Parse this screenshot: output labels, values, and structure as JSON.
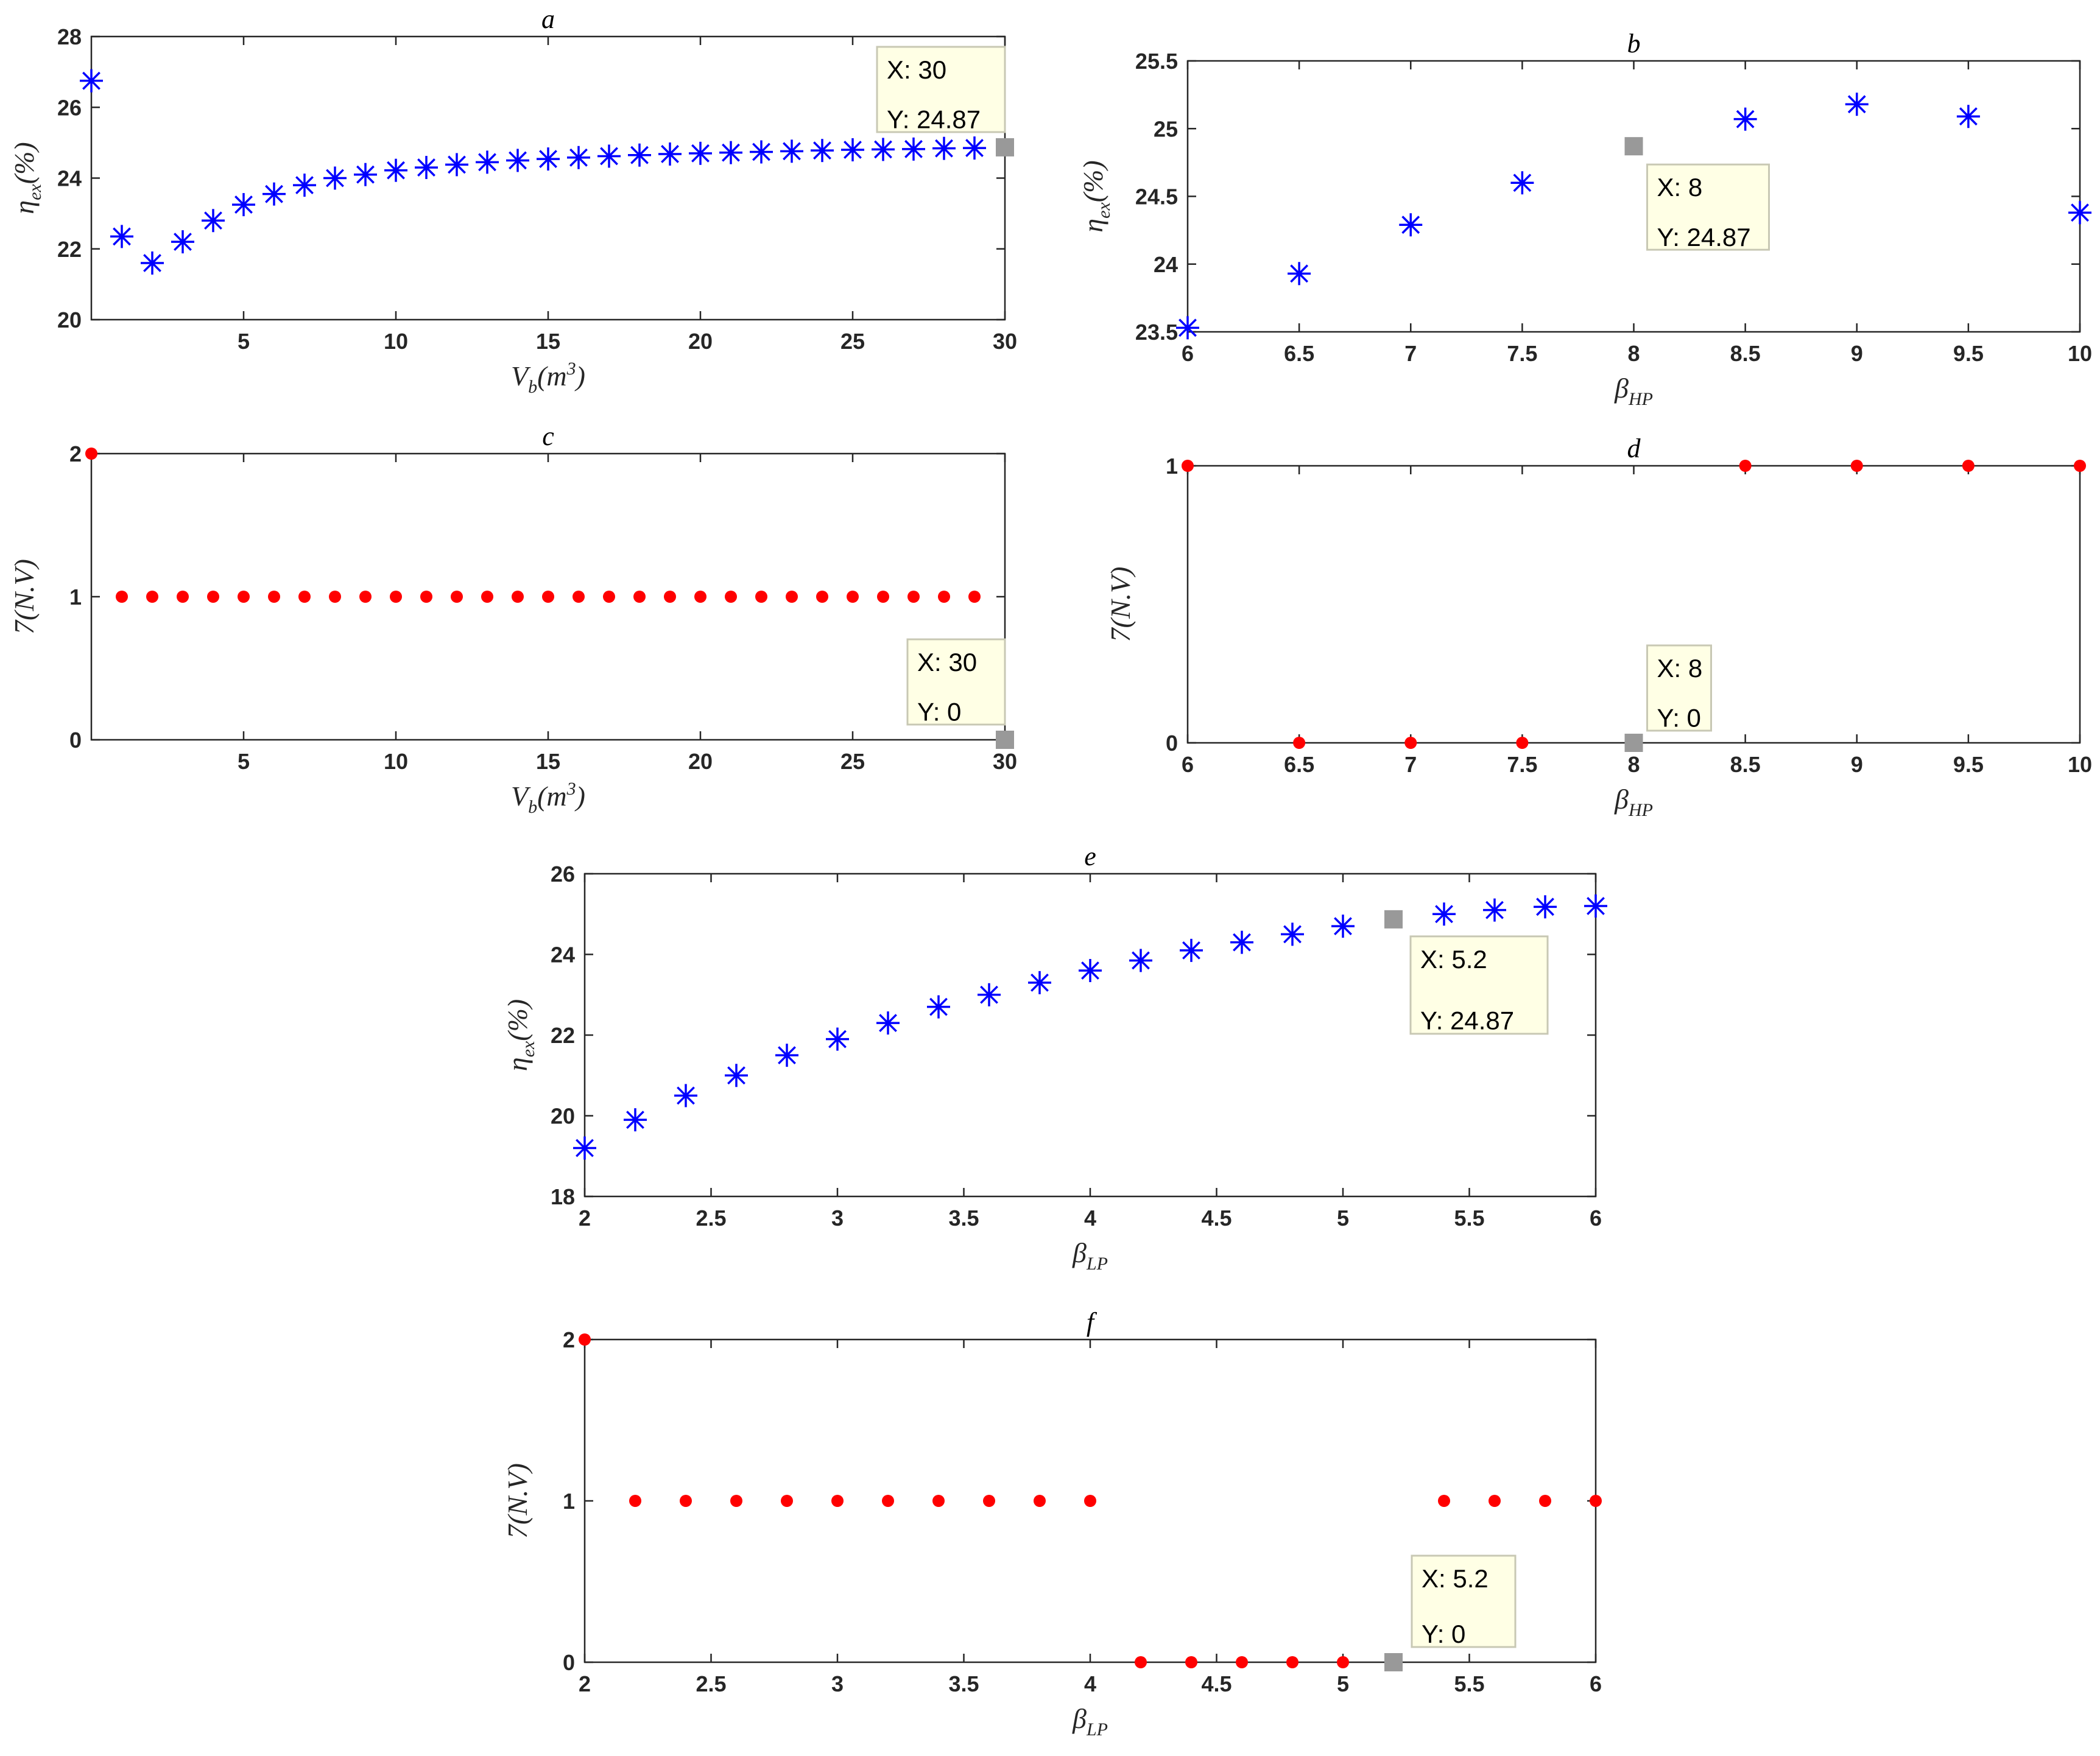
{
  "chart_data": [
    {
      "id": "a",
      "type": "scatter",
      "title": "a",
      "xlabel": "V_b(m^3)",
      "ylabel": "η_ex(%)",
      "xlim": [
        0,
        30
      ],
      "ylim": [
        20,
        28
      ],
      "xticks": [
        5,
        10,
        15,
        20,
        25,
        30
      ],
      "yticks": [
        20,
        22,
        24,
        26,
        28
      ],
      "marker": "star",
      "color": "#0000ff",
      "x": [
        0,
        1,
        2,
        3,
        4,
        5,
        6,
        7,
        8,
        9,
        10,
        11,
        12,
        13,
        14,
        15,
        16,
        17,
        18,
        19,
        20,
        21,
        22,
        23,
        24,
        25,
        26,
        27,
        28,
        29
      ],
      "y": [
        26.75,
        22.35,
        21.6,
        22.2,
        22.8,
        23.25,
        23.55,
        23.8,
        24.0,
        24.1,
        24.22,
        24.3,
        24.38,
        24.45,
        24.5,
        24.54,
        24.58,
        24.62,
        24.65,
        24.68,
        24.7,
        24.72,
        24.74,
        24.76,
        24.78,
        24.8,
        24.81,
        24.82,
        24.84,
        24.85
      ],
      "datatip": {
        "x": 30,
        "y": 24.87,
        "lines": [
          "X: 30",
          "Y: 24.87"
        ]
      }
    },
    {
      "id": "b",
      "type": "scatter",
      "title": "b",
      "xlabel": "β_HP",
      "ylabel": "η_ex(%)",
      "xlim": [
        6,
        10
      ],
      "ylim": [
        23.5,
        25.5
      ],
      "xticks": [
        6,
        6.5,
        7,
        7.5,
        8,
        8.5,
        9,
        9.5,
        10
      ],
      "yticks": [
        23.5,
        24,
        24.5,
        25,
        25.5
      ],
      "marker": "star",
      "color": "#0000ff",
      "x": [
        6,
        6.5,
        7,
        7.5,
        8.5,
        9,
        9.5,
        10
      ],
      "y": [
        23.53,
        23.93,
        24.29,
        24.6,
        25.07,
        25.18,
        25.09,
        24.38
      ],
      "datatip": {
        "x": 8,
        "y": 24.87,
        "lines": [
          "X: 8",
          "Y: 24.87"
        ]
      }
    },
    {
      "id": "c",
      "type": "scatter",
      "title": "c",
      "xlabel": "V_b(m^3)",
      "ylabel": "7(N.V)",
      "xlim": [
        0,
        30
      ],
      "ylim": [
        0,
        2
      ],
      "xticks": [
        5,
        10,
        15,
        20,
        25,
        30
      ],
      "yticks": [
        0,
        1,
        2
      ],
      "marker": "dot",
      "color": "#ff0000",
      "x": [
        0,
        1,
        2,
        3,
        4,
        5,
        6,
        7,
        8,
        9,
        10,
        11,
        12,
        13,
        14,
        15,
        16,
        17,
        18,
        19,
        20,
        21,
        22,
        23,
        24,
        25,
        26,
        27,
        28,
        29
      ],
      "y": [
        2,
        1,
        1,
        1,
        1,
        1,
        1,
        1,
        1,
        1,
        1,
        1,
        1,
        1,
        1,
        1,
        1,
        1,
        1,
        1,
        1,
        1,
        1,
        1,
        1,
        1,
        1,
        1,
        1,
        1
      ],
      "datatip": {
        "x": 30,
        "y": 0,
        "lines": [
          "X: 30",
          "Y: 0"
        ]
      }
    },
    {
      "id": "d",
      "type": "scatter",
      "title": "d",
      "xlabel": "β_HP",
      "ylabel": "7(N.V)",
      "xlim": [
        6,
        10
      ],
      "ylim": [
        0,
        1
      ],
      "xticks": [
        6,
        6.5,
        7,
        7.5,
        8,
        8.5,
        9,
        9.5,
        10
      ],
      "yticks": [
        0,
        1
      ],
      "marker": "dot",
      "color": "#ff0000",
      "x": [
        6,
        6.5,
        7,
        7.5,
        8.5,
        9,
        9.5,
        10
      ],
      "y": [
        1,
        0,
        0,
        0,
        1,
        1,
        1,
        1
      ],
      "datatip": {
        "x": 8,
        "y": 0,
        "lines": [
          "X: 8",
          "Y: 0"
        ]
      }
    },
    {
      "id": "e",
      "type": "scatter",
      "title": "e",
      "xlabel": "β_LP",
      "ylabel": "η_ex(%)",
      "xlim": [
        2,
        6
      ],
      "ylim": [
        18,
        26
      ],
      "xticks": [
        2,
        2.5,
        3,
        3.5,
        4,
        4.5,
        5,
        5.5,
        6
      ],
      "yticks": [
        18,
        20,
        22,
        24,
        26
      ],
      "marker": "star",
      "color": "#0000ff",
      "x": [
        2,
        2.2,
        2.4,
        2.6,
        2.8,
        3,
        3.2,
        3.4,
        3.6,
        3.8,
        4,
        4.2,
        4.4,
        4.6,
        4.8,
        5,
        5.4,
        5.6,
        5.8,
        6
      ],
      "y": [
        19.2,
        19.9,
        20.5,
        21.0,
        21.5,
        21.9,
        22.3,
        22.7,
        23.0,
        23.3,
        23.6,
        23.85,
        24.1,
        24.3,
        24.5,
        24.7,
        25.0,
        25.1,
        25.18,
        25.2
      ],
      "datatip": {
        "x": 5.2,
        "y": 24.87,
        "lines": [
          "X: 5.2",
          "Y: 24.87"
        ]
      }
    },
    {
      "id": "f",
      "type": "scatter",
      "title": "f",
      "xlabel": "β_LP",
      "ylabel": "7(N.V)",
      "xlim": [
        2,
        6
      ],
      "ylim": [
        0,
        2
      ],
      "xticks": [
        2,
        2.5,
        3,
        3.5,
        4,
        4.5,
        5,
        5.5,
        6
      ],
      "yticks": [
        0,
        1,
        2
      ],
      "marker": "dot",
      "color": "#ff0000",
      "x": [
        2,
        2.2,
        2.4,
        2.6,
        2.8,
        3,
        3.2,
        3.4,
        3.6,
        3.8,
        4,
        4.2,
        4.4,
        4.6,
        4.8,
        5,
        5.4,
        5.6,
        5.8,
        6
      ],
      "y": [
        2,
        1,
        1,
        1,
        1,
        1,
        1,
        1,
        1,
        1,
        1,
        0,
        0,
        0,
        0,
        0,
        1,
        1,
        1,
        1
      ],
      "datatip": {
        "x": 5.2,
        "y": 0,
        "lines": [
          "X: 5.2",
          "Y: 0"
        ]
      }
    }
  ],
  "colors": {
    "datatip_bg": "#ffffe5",
    "datatip_border": "#c8c8b4",
    "datatip_marker": "#999999"
  }
}
